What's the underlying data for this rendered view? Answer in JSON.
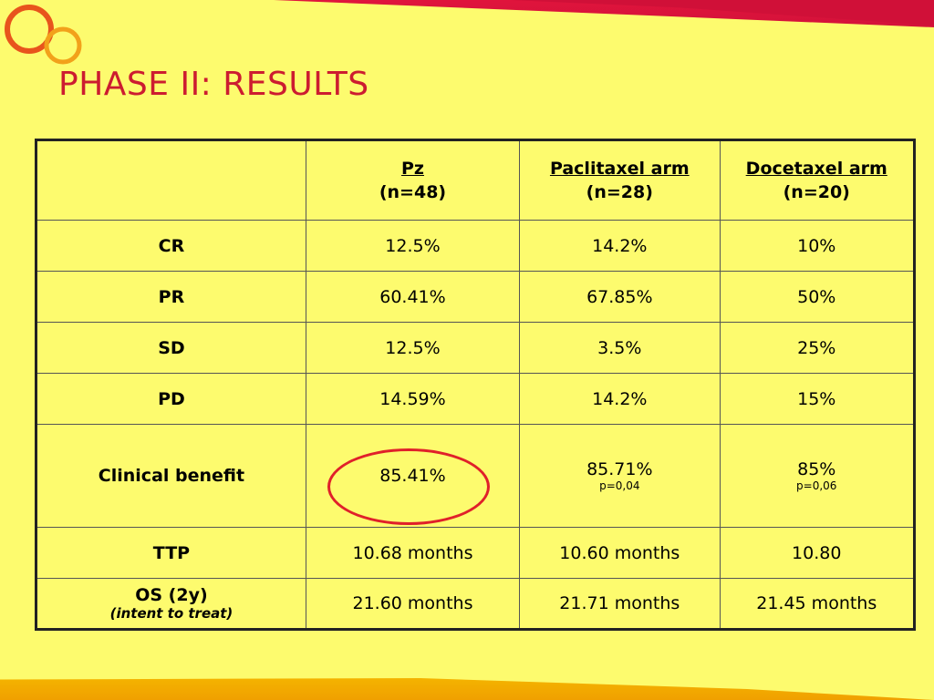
{
  "slide": {
    "title": "PHASE II: RESULTS",
    "colors": {
      "background": "#fdfb6e",
      "title": "#cc1c30",
      "highlight_circle": "#e0202a",
      "top_band": "#d3123a",
      "bottom_band": "#f5b800"
    }
  },
  "table": {
    "headers": [
      {
        "name": "",
        "n": ""
      },
      {
        "name": "Pz",
        "n": "(n=48)"
      },
      {
        "name": "Paclitaxel arm",
        "n": "(n=28)"
      },
      {
        "name": "Docetaxel arm",
        "n": "(n=20)"
      }
    ],
    "rows": [
      {
        "label": "CR",
        "values": [
          "12.5%",
          "14.2%",
          "10%"
        ]
      },
      {
        "label": "PR",
        "values": [
          "60.41%",
          "67.85%",
          "50%"
        ]
      },
      {
        "label": "SD",
        "values": [
          "12.5%",
          "3.5%",
          "25%"
        ]
      },
      {
        "label": "PD",
        "values": [
          "14.59%",
          "14.2%",
          "15%"
        ]
      },
      {
        "label": "Clinical benefit",
        "values": [
          "85.41%",
          "85.71%",
          "85%"
        ],
        "pvalues": [
          "",
          "p=0,04",
          "p=0,06"
        ]
      },
      {
        "label": "TTP",
        "values": [
          "10.68 months",
          "10.60 months",
          "10.80"
        ]
      },
      {
        "label": "OS (2y)",
        "note": "(intent to treat)",
        "values": [
          "21.60 months",
          "21.71 months",
          "21.45 months"
        ]
      }
    ]
  }
}
